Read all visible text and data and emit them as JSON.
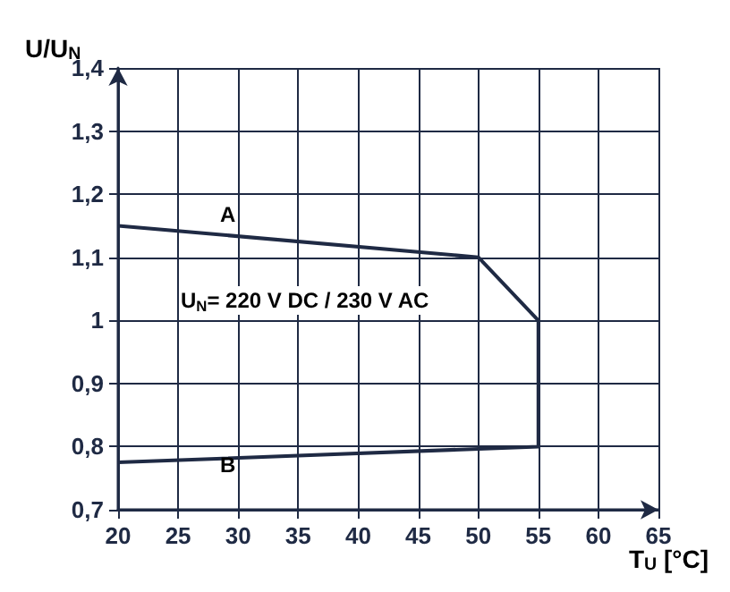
{
  "chart_data": {
    "type": "line",
    "xlabel": "T$_{U}$ [°C]",
    "ylabel": "U/U$_{N}$",
    "x": [
      20,
      50,
      55,
      55,
      20
    ],
    "series": [
      {
        "color": "#1f2a44",
        "values": [
          1.15,
          1.1,
          1.0,
          0.8,
          0.775
        ]
      }
    ],
    "xlim": [
      20,
      65
    ],
    "xticks": [
      20,
      25,
      30,
      35,
      40,
      45,
      50,
      55,
      60,
      65
    ],
    "ylim": [
      0.7,
      1.4
    ],
    "yticks": [
      {
        "value": 0.7,
        "label": "0,7"
      },
      {
        "value": 0.8,
        "label": "0,8"
      },
      {
        "value": 0.9,
        "label": "0,9"
      },
      1,
      {
        "value": 1.1,
        "label": "1,1"
      },
      {
        "value": 1.2,
        "label": "1,2"
      },
      {
        "value": 1.3,
        "label": "1,3"
      },
      {
        "value": 1.4,
        "label": "1,4"
      }
    ],
    "grid": true,
    "marker": "none",
    "line_style": "solid",
    "annotations": [
      "A",
      "B",
      "U$_{N}$= 220 V DC / 230 V AC"
    ]
  }
}
